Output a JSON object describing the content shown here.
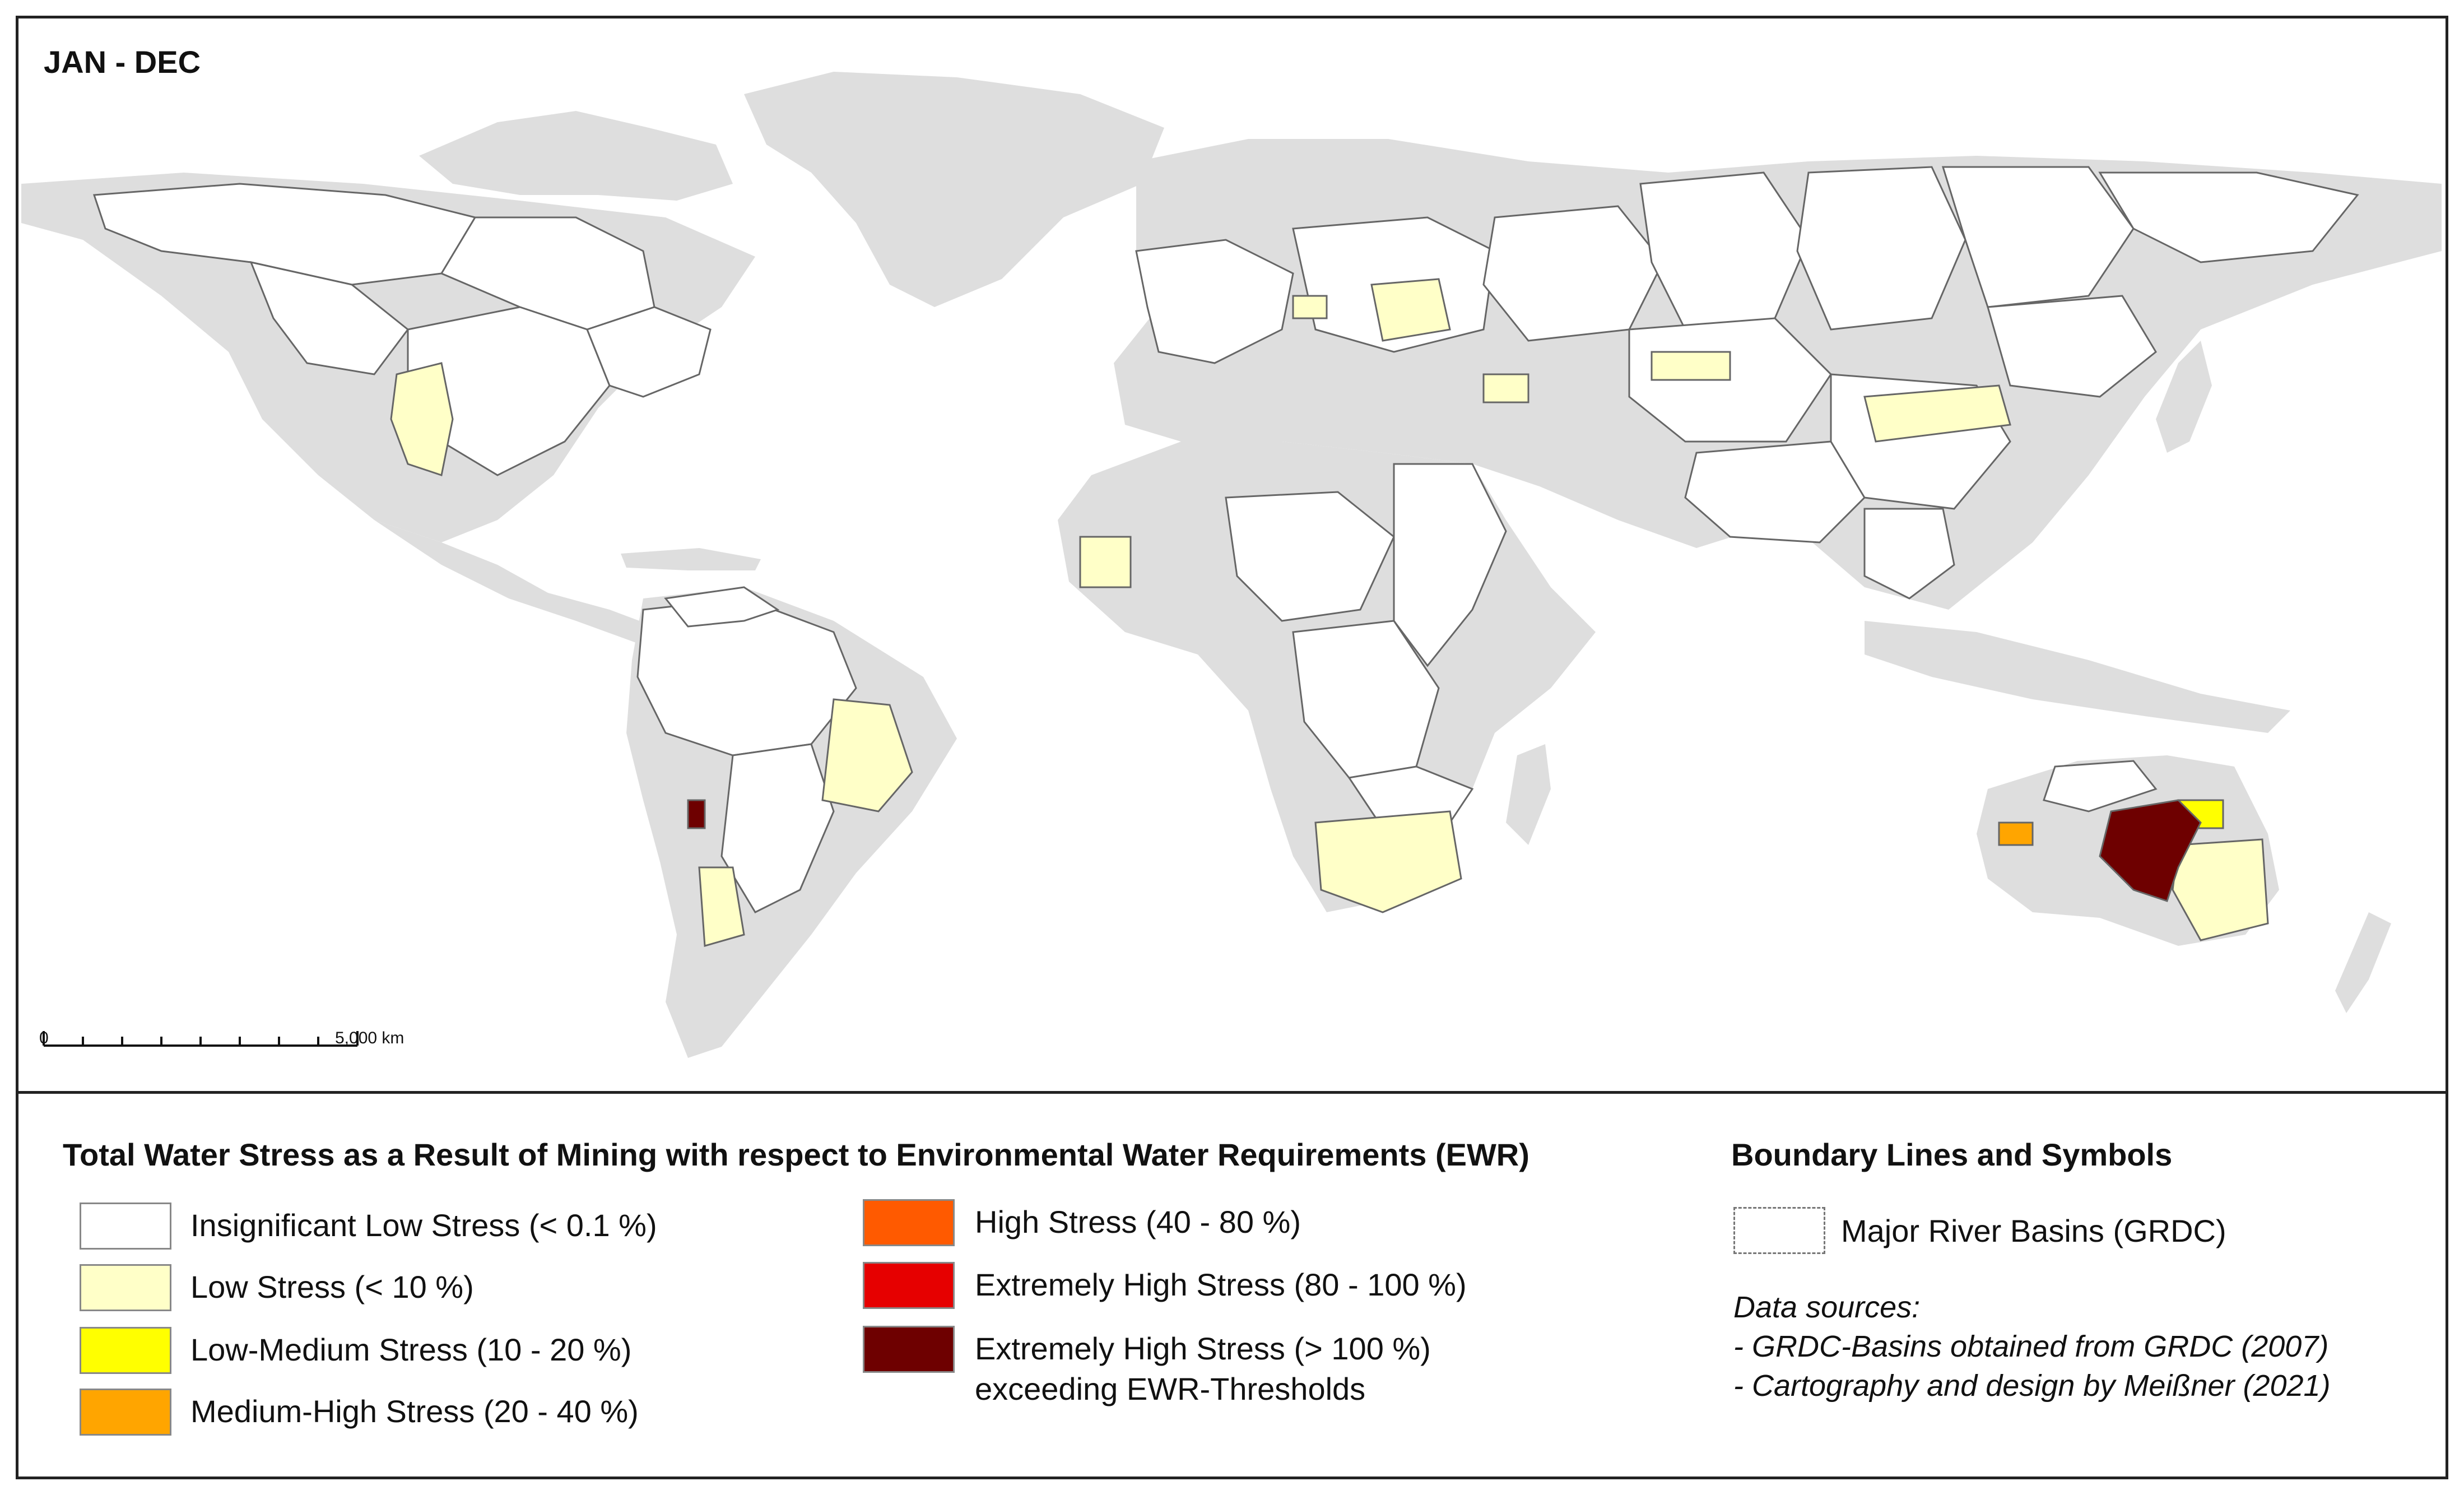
{
  "map": {
    "period_label": "JAN - DEC",
    "scale_bar": {
      "start_label": "0",
      "end_label": "5,000 km"
    }
  },
  "legend": {
    "title": "Total Water Stress as a Result of Mining with respect to Environmental Water Requirements (EWR)",
    "classes": [
      {
        "label": "Insignificant Low Stress (< 0.1 %)",
        "color": "#ffffff"
      },
      {
        "label": "Low Stress (< 10 %)",
        "color": "#ffffc8"
      },
      {
        "label": "Low-Medium Stress (10 - 20 %)",
        "color": "#ffff00"
      },
      {
        "label": "Medium-High Stress (20 - 40 %)",
        "color": "#ffa500"
      },
      {
        "label": "High Stress (40 - 80 %)",
        "color": "#ff5a00"
      },
      {
        "label": "Extremely High Stress (80 - 100 %)",
        "color": "#e60000"
      },
      {
        "label": "Extremely High Stress (> 100 %)",
        "label_line2": "exceeding EWR-Thresholds",
        "color": "#6e0000"
      }
    ]
  },
  "boundary": {
    "title": "Boundary Lines and Symbols",
    "item_label": "Major River Basins (GRDC)",
    "sources_heading": "Data sources:",
    "sources": [
      "- GRDC-Basins obtained from GRDC (2007)",
      "- Cartography and design by Meißner (2021)"
    ]
  },
  "colors": {
    "land_no_data": "#dedede",
    "basin_border": "#666666",
    "frame": "#222222"
  }
}
